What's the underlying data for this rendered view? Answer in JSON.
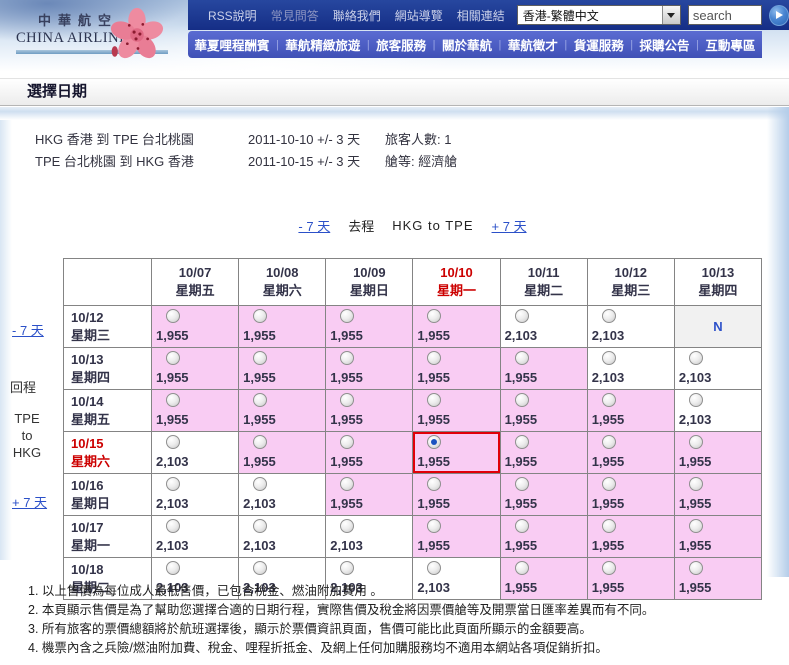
{
  "brand": {
    "name_cn": "中華航空",
    "name_en": "CHINA AIRLINES"
  },
  "topbar": {
    "links": [
      "RSS說明",
      "常見問答",
      "聯絡我們",
      "網站導覽",
      "相關連結"
    ],
    "language_selected": "香港-繁體中文",
    "search_placeholder": "search"
  },
  "menubar": {
    "separator": "|",
    "items": [
      "華夏哩程酬賓",
      "華航精緻旅遊",
      "旅客服務",
      "關於華航",
      "華航徵才",
      "貨運服務",
      "採購公告",
      "互動專區"
    ]
  },
  "page": {
    "title": "選擇日期"
  },
  "itinerary": [
    {
      "route": "HKG 香港 到 TPE 台北桃園",
      "date": "2011-10-10  +/- 3 天",
      "detail": "旅客人數: 1"
    },
    {
      "route": "TPE 台北桃園 到 HKG 香港",
      "date": "2011-10-15  +/- 3 天",
      "detail": "艙等: 經濟艙"
    }
  ],
  "outbound_nav": {
    "prev": "- 7 天",
    "direction": "去程",
    "route": "HKG  to  TPE",
    "next": "+ 7 天"
  },
  "side_rail": {
    "prev": "- 7 天",
    "return_label": "回程",
    "route_lines": [
      "TPE",
      "to",
      "HKG"
    ],
    "next": "+ 7 天"
  },
  "fare_table": {
    "columns": [
      {
        "date": "10/07",
        "day": "星期五",
        "highlight": false
      },
      {
        "date": "10/08",
        "day": "星期六",
        "highlight": false
      },
      {
        "date": "10/09",
        "day": "星期日",
        "highlight": false
      },
      {
        "date": "10/10",
        "day": "星期一",
        "highlight": true
      },
      {
        "date": "10/11",
        "day": "星期二",
        "highlight": false
      },
      {
        "date": "10/12",
        "day": "星期三",
        "highlight": false
      },
      {
        "date": "10/13",
        "day": "星期四",
        "highlight": false
      }
    ],
    "rows": [
      {
        "date": "10/12",
        "day": "星期三",
        "highlight": false,
        "cells": [
          {
            "price": "1,955",
            "lowfare": true
          },
          {
            "price": "1,955",
            "lowfare": true
          },
          {
            "price": "1,955",
            "lowfare": true
          },
          {
            "price": "1,955",
            "lowfare": true
          },
          {
            "price": "2,103",
            "lowfare": false
          },
          {
            "price": "2,103",
            "lowfare": false
          },
          {
            "na": "N"
          }
        ]
      },
      {
        "date": "10/13",
        "day": "星期四",
        "highlight": false,
        "cells": [
          {
            "price": "1,955",
            "lowfare": true
          },
          {
            "price": "1,955",
            "lowfare": true
          },
          {
            "price": "1,955",
            "lowfare": true
          },
          {
            "price": "1,955",
            "lowfare": true
          },
          {
            "price": "1,955",
            "lowfare": true
          },
          {
            "price": "2,103",
            "lowfare": false
          },
          {
            "price": "2,103",
            "lowfare": false
          }
        ]
      },
      {
        "date": "10/14",
        "day": "星期五",
        "highlight": false,
        "cells": [
          {
            "price": "1,955",
            "lowfare": true
          },
          {
            "price": "1,955",
            "lowfare": true
          },
          {
            "price": "1,955",
            "lowfare": true
          },
          {
            "price": "1,955",
            "lowfare": true
          },
          {
            "price": "1,955",
            "lowfare": true
          },
          {
            "price": "1,955",
            "lowfare": true
          },
          {
            "price": "2,103",
            "lowfare": false
          }
        ]
      },
      {
        "date": "10/15",
        "day": "星期六",
        "highlight": true,
        "cells": [
          {
            "price": "2,103",
            "lowfare": false
          },
          {
            "price": "1,955",
            "lowfare": true
          },
          {
            "price": "1,955",
            "lowfare": true
          },
          {
            "price": "1,955",
            "lowfare": true,
            "selected": true
          },
          {
            "price": "1,955",
            "lowfare": true
          },
          {
            "price": "1,955",
            "lowfare": true
          },
          {
            "price": "1,955",
            "lowfare": true
          }
        ]
      },
      {
        "date": "10/16",
        "day": "星期日",
        "highlight": false,
        "cells": [
          {
            "price": "2,103",
            "lowfare": false
          },
          {
            "price": "2,103",
            "lowfare": false
          },
          {
            "price": "1,955",
            "lowfare": true
          },
          {
            "price": "1,955",
            "lowfare": true
          },
          {
            "price": "1,955",
            "lowfare": true
          },
          {
            "price": "1,955",
            "lowfare": true
          },
          {
            "price": "1,955",
            "lowfare": true
          }
        ]
      },
      {
        "date": "10/17",
        "day": "星期一",
        "highlight": false,
        "cells": [
          {
            "price": "2,103",
            "lowfare": false
          },
          {
            "price": "2,103",
            "lowfare": false
          },
          {
            "price": "2,103",
            "lowfare": false
          },
          {
            "price": "1,955",
            "lowfare": true
          },
          {
            "price": "1,955",
            "lowfare": true
          },
          {
            "price": "1,955",
            "lowfare": true
          },
          {
            "price": "1,955",
            "lowfare": true
          }
        ]
      },
      {
        "date": "10/18",
        "day": "星期二",
        "highlight": false,
        "cells": [
          {
            "price": "2,103",
            "lowfare": false
          },
          {
            "price": "2,103",
            "lowfare": false
          },
          {
            "price": "2,103",
            "lowfare": false
          },
          {
            "price": "2,103",
            "lowfare": false
          },
          {
            "price": "1,955",
            "lowfare": true
          },
          {
            "price": "1,955",
            "lowfare": true
          },
          {
            "price": "1,955",
            "lowfare": true
          }
        ]
      }
    ]
  },
  "notes": [
    "1. 以上售價為每位成人最低售價，已包含稅金、燃油附加費用 。",
    "2. 本頁顯示售價是為了幫助您選擇合適的日期行程，實際售價及稅金將因票價艙等及開票當日匯率差異而有不同。",
    "3. 所有旅客的票價總額將於航班選擇後，顯示於票價資訊頁面，售價可能比此頁面所顯示的金額要高。",
    "4. 機票內含之兵險/燃油附加費、稅金、哩程折抵金、及網上任何加購服務均不適用本網站各項促銷折扣。"
  ],
  "colors": {
    "topbar_blue": "#1c3a9c",
    "menubar_blue": "#4d5ec5",
    "link_blue": "#2b50c8",
    "highlight_red": "#cc0000",
    "selected_border": "#e00008",
    "low_fare_bg": "#f9ccf3",
    "regular_fare_bg": "#ffffff",
    "no_flight_bg": "#f1f1f1"
  }
}
